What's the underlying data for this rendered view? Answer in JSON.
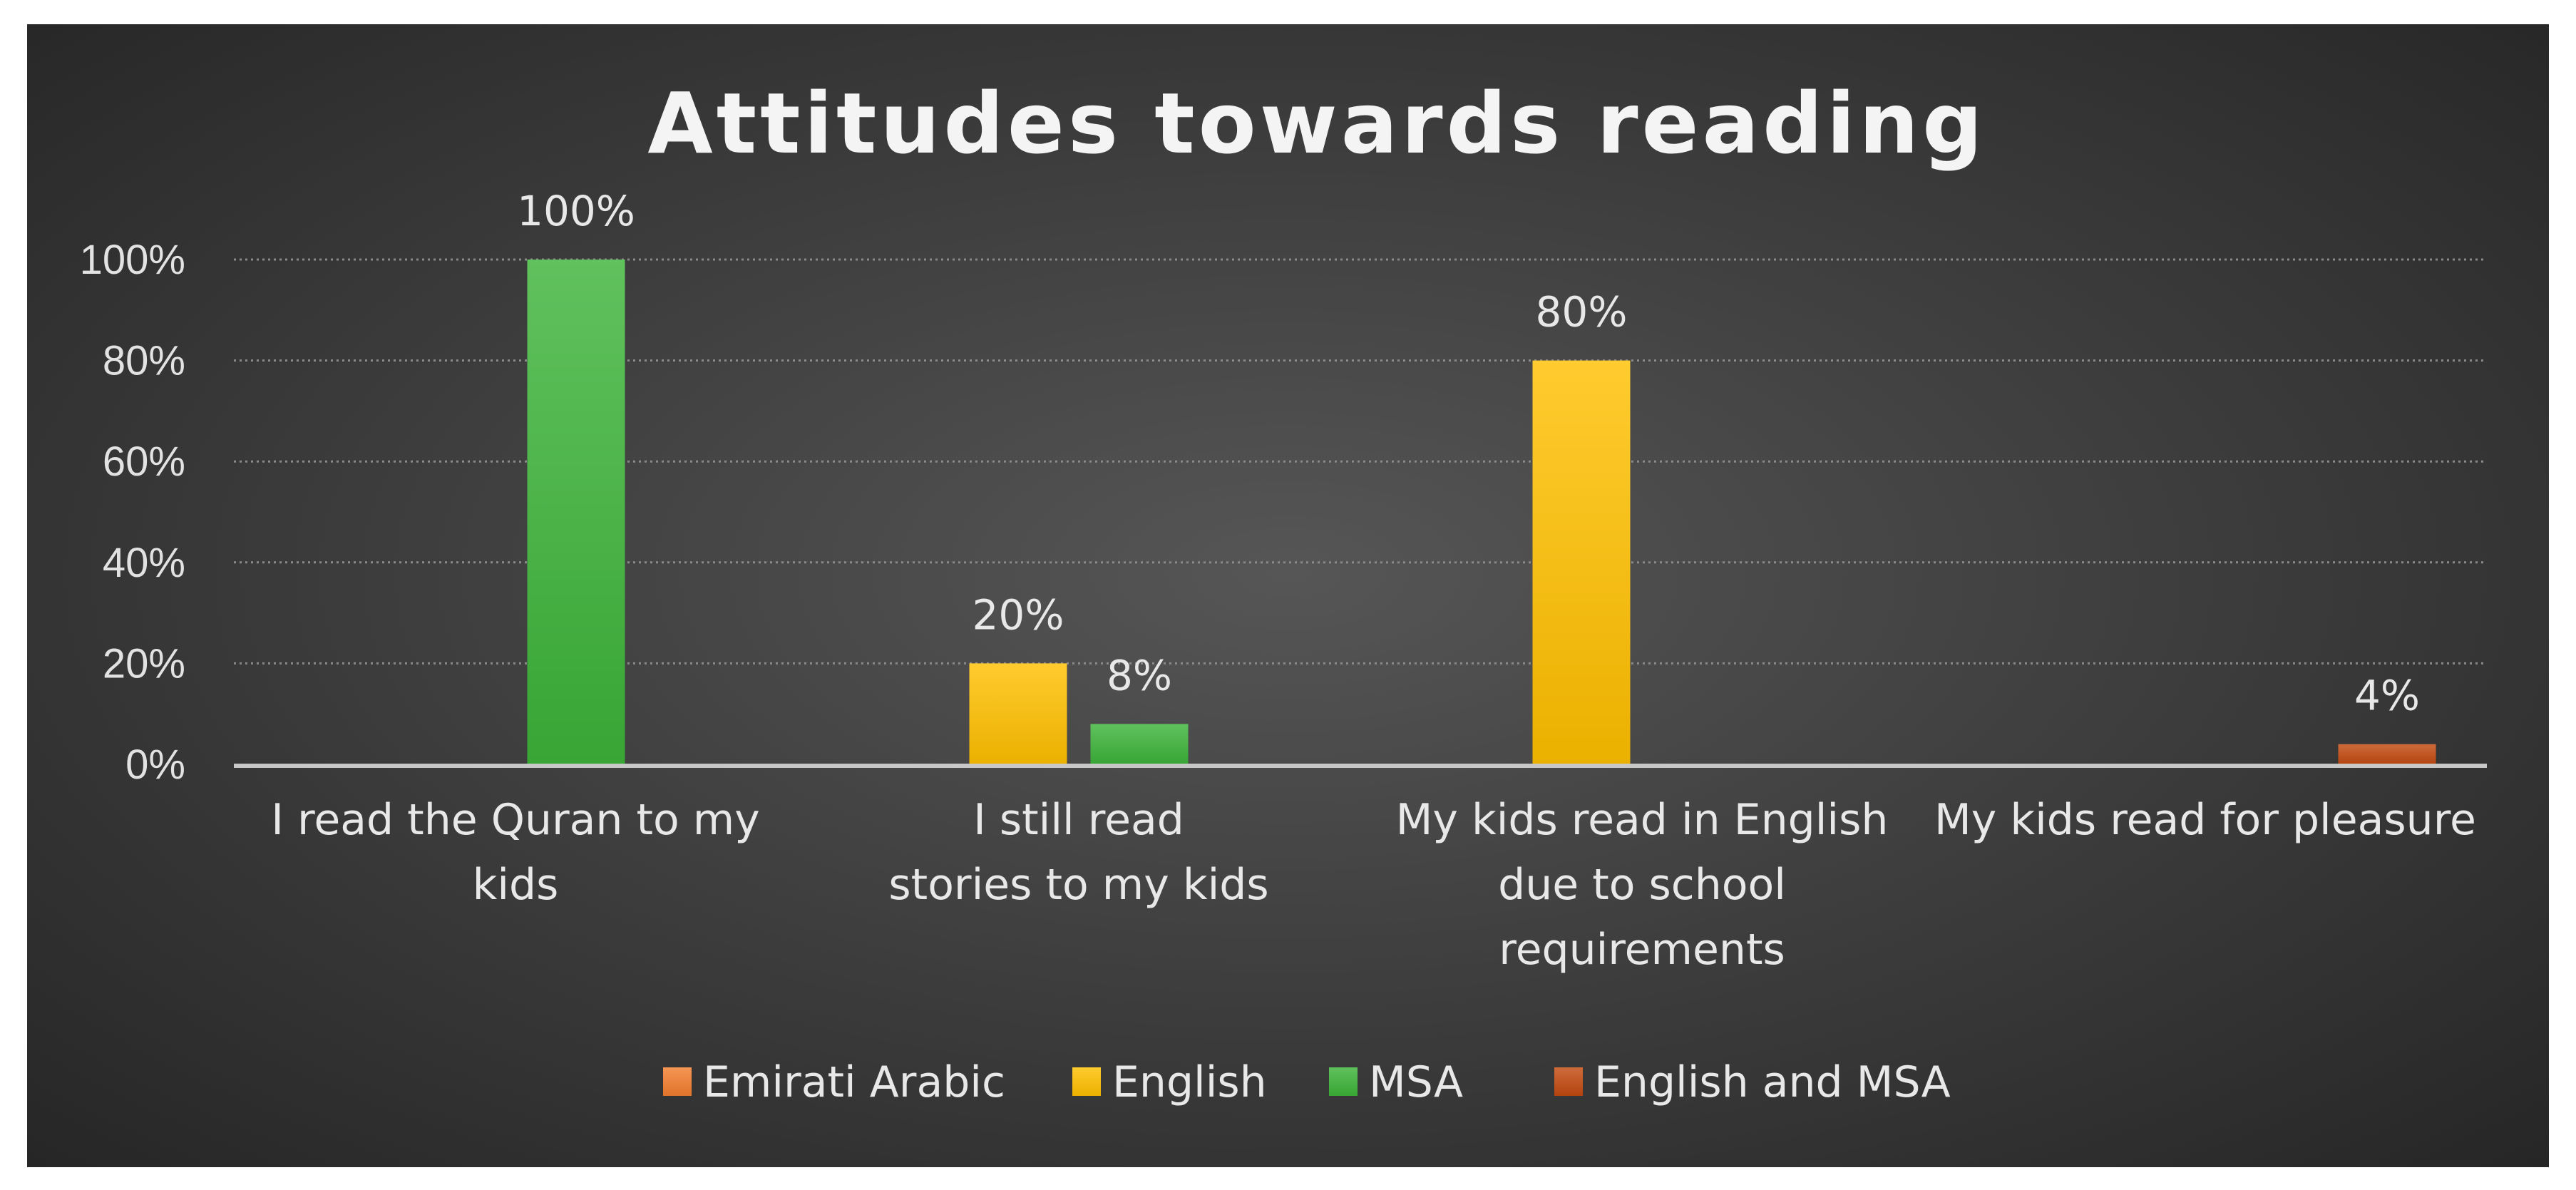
{
  "chart_data": {
    "type": "bar",
    "title": "Attitudes towards reading",
    "categories": [
      [
        "I read the Quran to my",
        "kids"
      ],
      [
        "I still read",
        "stories to my kids"
      ],
      [
        "My kids read in English",
        "due to school",
        "requirements"
      ],
      [
        "My kids read for pleasure"
      ]
    ],
    "series": [
      {
        "name": "Emirati Arabic",
        "color": "#f47e2e",
        "values": [
          0,
          0,
          0,
          0
        ]
      },
      {
        "name": "English",
        "color": "#ffc000",
        "values": [
          0,
          20,
          80,
          0
        ]
      },
      {
        "name": "MSA",
        "color": "#3db33a",
        "values": [
          100,
          8,
          0,
          0
        ]
      },
      {
        "name": "English and MSA",
        "color": "#c34a10",
        "values": [
          0,
          0,
          0,
          4
        ]
      }
    ],
    "data_labels": [
      {
        "series": 2,
        "category": 0,
        "text": "100%"
      },
      {
        "series": 1,
        "category": 1,
        "text": "20%"
      },
      {
        "series": 2,
        "category": 1,
        "text": "8%"
      },
      {
        "series": 1,
        "category": 2,
        "text": "80%"
      },
      {
        "series": 3,
        "category": 3,
        "text": "4%"
      }
    ],
    "y_ticks": [
      "0%",
      "20%",
      "40%",
      "60%",
      "80%",
      "100%"
    ],
    "ylim": [
      0,
      100
    ],
    "grid": true,
    "legend_position": "bottom"
  }
}
